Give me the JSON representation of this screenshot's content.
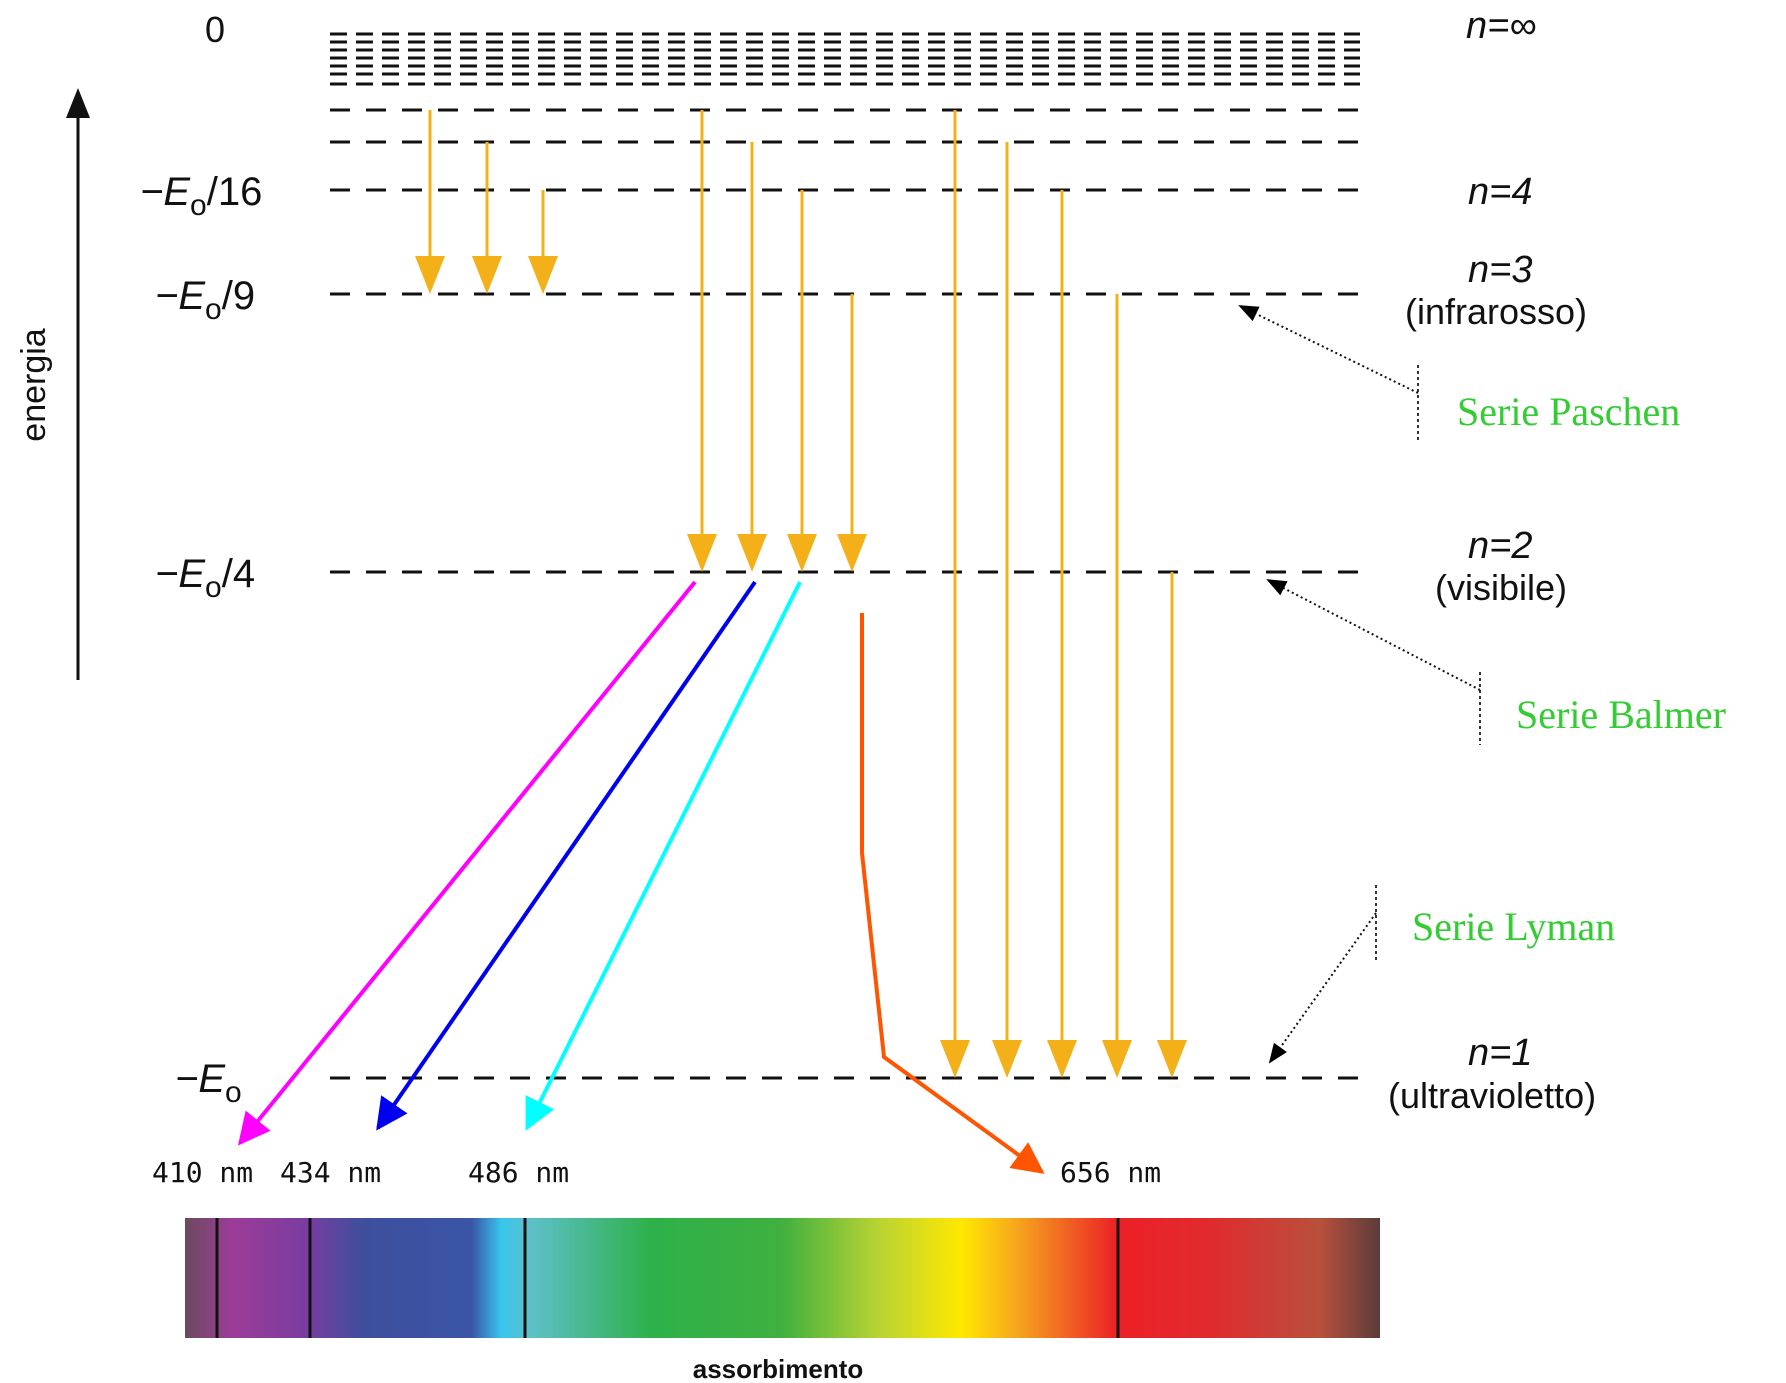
{
  "axis": {
    "label": "energia"
  },
  "levels": [
    {
      "id": "inf",
      "energy_label": "0",
      "n_label": "n=∞",
      "region_label": ""
    },
    {
      "id": "n4",
      "energy_label": "−E",
      "energy_sub": "o",
      "energy_tail": "/16",
      "n_label": "n=4",
      "region_label": ""
    },
    {
      "id": "n3",
      "energy_label": "−E",
      "energy_sub": "o",
      "energy_tail": "/9",
      "n_label": "n=3",
      "region_label": "(infrarosso)"
    },
    {
      "id": "n2",
      "energy_label": "−E",
      "energy_sub": "o",
      "energy_tail": "/4",
      "n_label": "n=2",
      "region_label": "(visibile)"
    },
    {
      "id": "n1",
      "energy_label": "−E",
      "energy_sub": "o",
      "energy_tail": "",
      "n_label": "n=1",
      "region_label": "(ultravioletto)"
    }
  ],
  "series": [
    {
      "id": "paschen",
      "label": "Serie Paschen",
      "final_level": 3
    },
    {
      "id": "balmer",
      "label": "Serie Balmer",
      "final_level": 2
    },
    {
      "id": "lyman",
      "label": "Serie Lyman",
      "final_level": 1
    }
  ],
  "wavelengths": [
    {
      "label": "410 nm",
      "nm": 410,
      "color": "#ff00ff"
    },
    {
      "label": "434 nm",
      "nm": 434,
      "color": "#0000ee"
    },
    {
      "label": "486 nm",
      "nm": 486,
      "color": "#00ffff"
    },
    {
      "label": "656 nm",
      "nm": 656,
      "color": "#ff5500"
    }
  ],
  "spectrum": {
    "caption": "assorbimento"
  },
  "colors": {
    "transition_arrow": "#f4b019",
    "series_label": "#33cc33",
    "level_line": "#111111"
  }
}
